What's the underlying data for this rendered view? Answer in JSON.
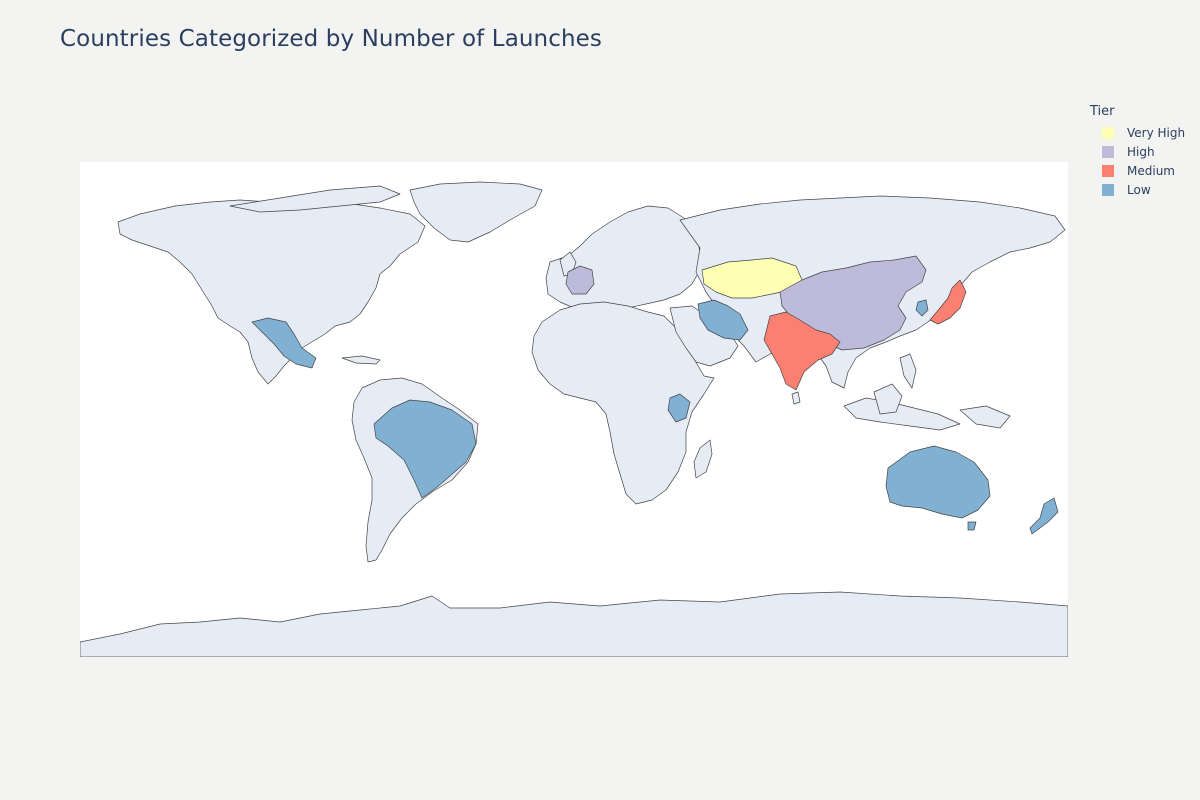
{
  "title": "Countries Categorized by Number of Launches",
  "legend": {
    "title": "Tier",
    "items": [
      {
        "label": "Very High",
        "color": "#ffffb3"
      },
      {
        "label": "High",
        "color": "#bebada"
      },
      {
        "label": "Medium",
        "color": "#fb8072"
      },
      {
        "label": "Low",
        "color": "#80b1d3"
      }
    ]
  },
  "colors": {
    "background": "#f3f3f2",
    "land": "#e5ecf6",
    "ocean": "#ffffff",
    "border": "#444444"
  },
  "map": {
    "projection": "equirectangular",
    "countries": [
      {
        "name": "Kazakhstan",
        "tier": "Very High"
      },
      {
        "name": "China",
        "tier": "High"
      },
      {
        "name": "France",
        "tier": "High"
      },
      {
        "name": "India",
        "tier": "Medium"
      },
      {
        "name": "Japan",
        "tier": "Medium"
      },
      {
        "name": "Mexico",
        "tier": "Low"
      },
      {
        "name": "Brazil",
        "tier": "Low"
      },
      {
        "name": "Iran",
        "tier": "Low"
      },
      {
        "name": "Kenya",
        "tier": "Low"
      },
      {
        "name": "South Korea",
        "tier": "Low"
      },
      {
        "name": "Australia",
        "tier": "Low"
      },
      {
        "name": "New Zealand",
        "tier": "Low"
      }
    ]
  }
}
